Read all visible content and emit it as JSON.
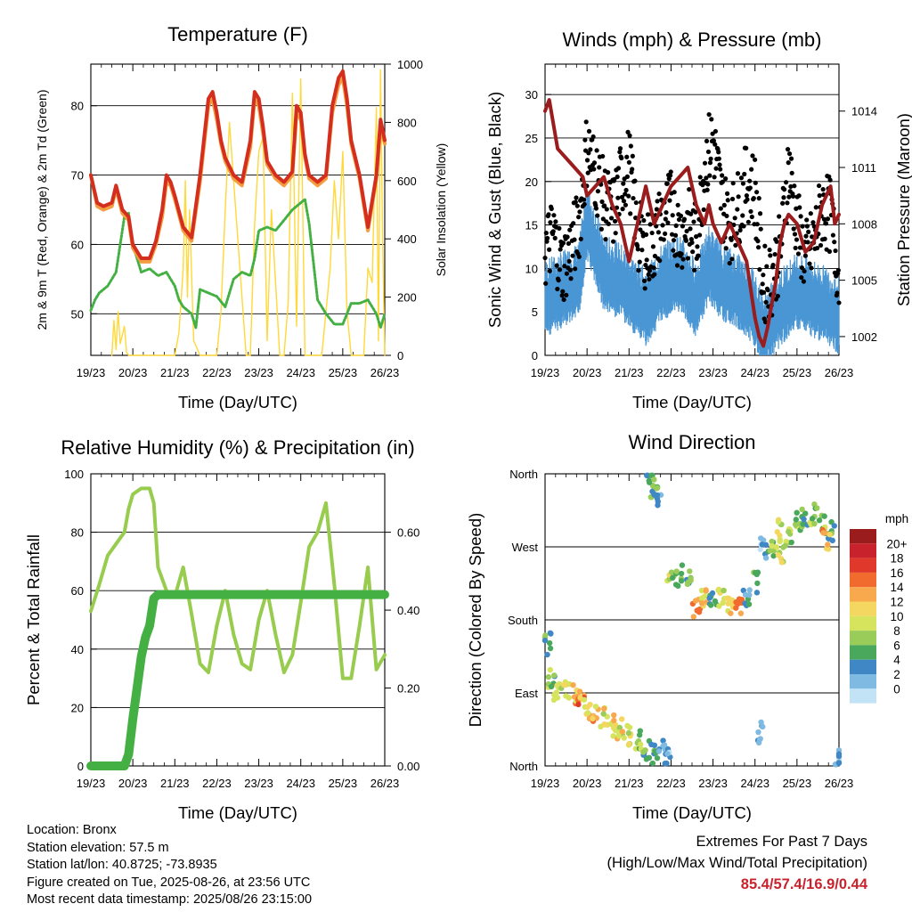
{
  "x_ticks": [
    "19/23",
    "20/23",
    "21/23",
    "22/23",
    "23/23",
    "24/23",
    "25/23",
    "26/23"
  ],
  "colors": {
    "temp_2m": "#d42e1e",
    "temp_9m": "#f39c40",
    "dewpoint": "#44b043",
    "solar": "#ffd83a",
    "wind": "#4a96d4",
    "gust": "#000000",
    "pressure": "#9b1c1c",
    "rh": "#97cc4e",
    "precip": "#44b043"
  },
  "chart_data": [
    {
      "id": "temperature",
      "type": "line",
      "title": "Temperature (F)",
      "xlabel": "Time (Day/UTC)",
      "ylabel": "2m & 9m T (Red, Orange) & 2m Td (Green)",
      "ylabel_right": "Solar Insolation (Yellow)",
      "ylim": [
        44,
        86
      ],
      "ylim_right": [
        0,
        1000
      ],
      "yticks": [
        "50",
        "60",
        "70",
        "80"
      ],
      "yticks_right": [
        "0",
        "200",
        "400",
        "600",
        "800",
        "1000"
      ],
      "series": [
        {
          "x": [
            0,
            0.15,
            0.3,
            0.5,
            0.6,
            0.75,
            0.9,
            1.0,
            1.2,
            1.4,
            1.55,
            1.7,
            1.8,
            1.9,
            2.0,
            2.2,
            2.4,
            2.6,
            2.8,
            2.9,
            3.0,
            3.1,
            3.2,
            3.4,
            3.6,
            3.8,
            3.9,
            4.0,
            4.1,
            4.2,
            4.4,
            4.6,
            4.8,
            4.9,
            5.0,
            5.1,
            5.2,
            5.4,
            5.6,
            5.75,
            5.9,
            6.0,
            6.1,
            6.2,
            6.4,
            6.6,
            6.8,
            6.9,
            7.0
          ],
          "y": [
            70,
            66,
            65.5,
            66,
            68.5,
            65,
            64,
            60,
            58,
            58,
            60.5,
            65,
            70,
            69,
            67,
            62.5,
            61,
            70,
            81,
            82,
            79,
            75,
            72.5,
            70,
            69,
            75,
            82,
            81,
            77,
            72,
            70,
            69,
            70.5,
            80,
            79,
            73,
            70,
            69,
            70,
            80,
            84,
            85,
            81,
            75,
            70,
            62.5,
            70,
            78,
            75
          ]
        },
        {
          "x": [
            0,
            0.15,
            0.3,
            0.5,
            0.6,
            0.75,
            0.9,
            1.0,
            1.2,
            1.4,
            1.55,
            1.7,
            1.8,
            1.9,
            2.0,
            2.2,
            2.4,
            2.6,
            2.8,
            2.9,
            3.0,
            3.1,
            3.2,
            3.4,
            3.6,
            3.8,
            3.9,
            4.0,
            4.1,
            4.2,
            4.4,
            4.6,
            4.8,
            4.9,
            5.0,
            5.1,
            5.2,
            5.4,
            5.6,
            5.75,
            5.9,
            6.0,
            6.1,
            6.2,
            6.4,
            6.6,
            6.8,
            6.9,
            7.0
          ],
          "y": [
            70,
            65.5,
            65,
            65.5,
            68,
            64.5,
            63.5,
            59.5,
            57.5,
            57.5,
            60,
            64,
            69,
            68.5,
            66.5,
            62,
            60.5,
            69,
            80,
            81,
            78,
            74.5,
            72,
            69.5,
            68.5,
            74,
            81,
            80,
            76,
            71.5,
            69.5,
            68.5,
            70,
            79,
            78,
            72.5,
            69.5,
            68.5,
            69.5,
            79,
            83,
            84,
            80,
            74.5,
            69.5,
            62,
            69.5,
            77,
            74.5
          ]
        },
        {
          "x": [
            0,
            0.1,
            0.2,
            0.4,
            0.6,
            0.7,
            0.8,
            0.9,
            1.0,
            1.2,
            1.4,
            1.6,
            1.8,
            1.9,
            2.0,
            2.1,
            2.2,
            2.4,
            2.5,
            2.6,
            2.8,
            3.0,
            3.2,
            3.4,
            3.6,
            3.8,
            3.9,
            4.0,
            4.2,
            4.4,
            4.6,
            4.8,
            5.0,
            5.1,
            5.2,
            5.4,
            5.6,
            5.8,
            6.0,
            6.2,
            6.4,
            6.6,
            6.8,
            6.9,
            7.0
          ],
          "y": [
            50.5,
            52,
            53,
            54,
            56,
            60,
            64,
            64.5,
            60,
            56,
            56.5,
            55.5,
            56,
            55,
            54,
            52,
            51,
            50,
            48,
            53.5,
            53,
            52.5,
            51,
            55,
            56,
            55.5,
            58,
            62,
            62.5,
            62,
            63.5,
            65,
            66,
            66.5,
            63,
            52,
            50,
            48.5,
            48.5,
            51.5,
            51.5,
            52,
            50,
            48,
            50
          ]
        },
        {
          "x": [
            0.5,
            0.55,
            0.6,
            0.65,
            0.7,
            0.8,
            0.85,
            0.9,
            2.0,
            2.1,
            2.2,
            2.25,
            2.3,
            2.35,
            2.45,
            2.6,
            2.8,
            3.0,
            3.1,
            3.2,
            3.3,
            3.5,
            3.7,
            3.8,
            3.9,
            4.0,
            4.1,
            4.2,
            4.3,
            4.5,
            4.6,
            4.7,
            4.8,
            4.9,
            5.0,
            5.1,
            5.2,
            5.3,
            5.5,
            5.7,
            5.8,
            5.9,
            6.0,
            6.1,
            6.2,
            6.3,
            6.5,
            6.6,
            6.7,
            6.8,
            6.85,
            6.9,
            6.95,
            7.0
          ],
          "y": [
            0,
            120,
            20,
            150,
            40,
            100,
            10,
            0,
            0,
            80,
            300,
            600,
            200,
            500,
            50,
            0,
            0,
            0,
            150,
            500,
            800,
            400,
            0,
            0,
            450,
            700,
            750,
            50,
            500,
            0,
            0,
            180,
            900,
            100,
            950,
            0,
            0,
            0,
            0,
            300,
            600,
            400,
            700,
            150,
            0,
            0,
            0,
            300,
            250,
            850,
            50,
            980,
            400,
            0
          ]
        }
      ],
      "series_colors": [
        "temp_2m",
        "temp_9m",
        "dewpoint",
        "solar"
      ]
    },
    {
      "id": "winds",
      "type": "scatter",
      "title": "Winds (mph) & Pressure (mb)",
      "xlabel": "Time (Day/UTC)",
      "ylabel": "Sonic Wind & Gust (Blue, Black)",
      "ylabel_right": "Station Pressure (Maroon)",
      "ylim": [
        0,
        33.5
      ],
      "ylim_right": [
        1001,
        1016.5
      ],
      "yticks": [
        "0",
        "5",
        "10",
        "15",
        "20",
        "25",
        "30"
      ],
      "yticks_right": [
        "1002",
        "1005",
        "1008",
        "1011",
        "1014"
      ],
      "series": [
        {
          "x": [
            0,
            0.4,
            0.8,
            1.0,
            1.4,
            1.8,
            2.0,
            2.4,
            2.8,
            3.2,
            3.6,
            3.9,
            4.2,
            4.6,
            5.0,
            5.2,
            5.6,
            6.0,
            6.4,
            6.8,
            7.0
          ],
          "y": [
            6,
            7,
            8,
            15,
            9,
            8,
            7,
            5,
            8,
            9,
            6,
            10,
            8,
            7,
            5,
            2,
            5,
            7,
            6,
            5,
            4
          ]
        },
        {
          "x": [
            0,
            0.2,
            0.4,
            0.6,
            0.8,
            1.0,
            1.2,
            1.4,
            1.6,
            1.8,
            2.0,
            2.2,
            2.4,
            2.6,
            2.8,
            3.0,
            3.2,
            3.4,
            3.6,
            3.8,
            4.0,
            4.2,
            4.4,
            4.6,
            4.8,
            5.0,
            5.2,
            5.4,
            5.6,
            5.8,
            6.0,
            6.2,
            6.4,
            6.6,
            6.8,
            7.0
          ],
          "y": [
            12,
            14,
            10,
            12,
            15,
            24,
            21,
            18,
            16,
            20,
            22,
            14,
            12,
            13,
            16,
            17,
            14,
            15,
            13,
            22,
            25,
            18,
            15,
            17,
            20,
            19,
            8,
            9,
            12,
            22,
            15,
            11,
            13,
            17,
            16,
            9
          ]
        },
        {
          "x": [
            0,
            0.1,
            0.3,
            0.5,
            0.7,
            0.9,
            1.0,
            1.2,
            1.4,
            1.6,
            1.8,
            2.0,
            2.2,
            2.4,
            2.6,
            2.8,
            3.0,
            3.2,
            3.4,
            3.6,
            3.8,
            3.9,
            4.0,
            4.2,
            4.4,
            4.6,
            4.8,
            5.0,
            5.1,
            5.2,
            5.3,
            5.5,
            5.6,
            5.7,
            5.8,
            6.0,
            6.2,
            6.4,
            6.6,
            6.8,
            6.9,
            7.0
          ],
          "y": [
            1014,
            1014.6,
            1012,
            1011.5,
            1011,
            1010.5,
            1009.5,
            1010,
            1010.5,
            1009,
            1008,
            1006,
            1008,
            1010,
            1008,
            1009,
            1010,
            1010.5,
            1011,
            1009,
            1008,
            1009,
            1008,
            1007,
            1008,
            1007,
            1006,
            1003,
            1002,
            1001.5,
            1002.5,
            1005,
            1007,
            1008,
            1008.5,
            1008,
            1006.5,
            1007,
            1009,
            1010,
            1008,
            1008.5
          ]
        }
      ],
      "series_colors": [
        "wind",
        "gust",
        "pressure"
      ]
    },
    {
      "id": "humidity",
      "type": "line",
      "title": "Relative Humidity (%) & Precipitation (in)",
      "xlabel": "Time (Day/UTC)",
      "ylabel": "Percent & Total Rainfall",
      "ylim": [
        0,
        100
      ],
      "ylim_right": [
        0,
        0.75
      ],
      "yticks": [
        "0",
        "20",
        "40",
        "60",
        "80",
        "100"
      ],
      "yticks_right": [
        "0.00",
        "0.20",
        "0.40",
        "0.60"
      ],
      "series": [
        {
          "x": [
            0,
            0.2,
            0.4,
            0.6,
            0.8,
            0.9,
            1.0,
            1.2,
            1.4,
            1.5,
            1.6,
            1.8,
            2.0,
            2.2,
            2.4,
            2.6,
            2.8,
            3.0,
            3.2,
            3.4,
            3.6,
            3.8,
            4.0,
            4.2,
            4.4,
            4.6,
            4.8,
            5.0,
            5.2,
            5.4,
            5.6,
            5.8,
            6.0,
            6.2,
            6.4,
            6.6,
            6.8,
            7.0
          ],
          "y": [
            53,
            62,
            72,
            76,
            80,
            88,
            93,
            95,
            95,
            90,
            68,
            60,
            58,
            68,
            52,
            35,
            32,
            48,
            60,
            45,
            35,
            33,
            50,
            60,
            45,
            32,
            38,
            56,
            75,
            80,
            90,
            62,
            30,
            30,
            48,
            68,
            33,
            38
          ]
        },
        {
          "x": [
            0,
            0.4,
            0.6,
            0.8,
            0.9,
            1.0,
            1.1,
            1.2,
            1.3,
            1.4,
            1.5,
            1.6,
            2,
            3,
            4,
            5,
            6,
            7
          ],
          "y": [
            0,
            0,
            0,
            0,
            0.03,
            0.12,
            0.2,
            0.28,
            0.33,
            0.36,
            0.43,
            0.44,
            0.44,
            0.44,
            0.44,
            0.44,
            0.44,
            0.44
          ]
        }
      ],
      "series_colors": [
        "rh",
        "precip"
      ]
    },
    {
      "id": "wind_direction",
      "type": "scatter",
      "title": "Wind Direction",
      "xlabel": "Time (Day/UTC)",
      "ylabel": "Direction (Colored By Speed)",
      "ylim": [
        0,
        360
      ],
      "yticks": [
        "North",
        "East",
        "South",
        "West",
        "North"
      ],
      "legend_title": "mph",
      "legend_labels": [
        "20+",
        "18",
        "16",
        "14",
        "12",
        "10",
        "8",
        "6",
        "4",
        "2",
        "0"
      ],
      "legend_colors": [
        "#9b1c1c",
        "#c8232c",
        "#e0382a",
        "#f26b2e",
        "#f8a94e",
        "#f4d760",
        "#d6e35d",
        "#9acc59",
        "#4aa85d",
        "#3f88c5",
        "#7ebae2",
        "#c2e3f5"
      ],
      "points": [
        {
          "x": 0.05,
          "y": 150,
          "v": 6
        },
        {
          "x": 0.15,
          "y": 110,
          "v": 7
        },
        {
          "x": 0.3,
          "y": 95,
          "v": 9
        },
        {
          "x": 0.5,
          "y": 92,
          "v": 11
        },
        {
          "x": 0.7,
          "y": 88,
          "v": 13
        },
        {
          "x": 0.85,
          "y": 80,
          "v": 15
        },
        {
          "x": 1.0,
          "y": 70,
          "v": 12
        },
        {
          "x": 1.2,
          "y": 60,
          "v": 13
        },
        {
          "x": 1.4,
          "y": 58,
          "v": 11
        },
        {
          "x": 1.6,
          "y": 50,
          "v": 12
        },
        {
          "x": 1.8,
          "y": 45,
          "v": 11
        },
        {
          "x": 2.0,
          "y": 38,
          "v": 10
        },
        {
          "x": 2.2,
          "y": 30,
          "v": 8
        },
        {
          "x": 2.4,
          "y": 20,
          "v": 6
        },
        {
          "x": 2.6,
          "y": 15,
          "v": 5
        },
        {
          "x": 2.8,
          "y": 20,
          "v": 4
        },
        {
          "x": 2.9,
          "y": 15,
          "v": 3
        },
        {
          "x": 2.5,
          "y": 355,
          "v": 5
        },
        {
          "x": 2.6,
          "y": 345,
          "v": 6
        },
        {
          "x": 2.7,
          "y": 330,
          "v": 5
        },
        {
          "x": 3.0,
          "y": 230,
          "v": 9
        },
        {
          "x": 3.2,
          "y": 235,
          "v": 8
        },
        {
          "x": 3.4,
          "y": 230,
          "v": 7
        },
        {
          "x": 3.6,
          "y": 195,
          "v": 15
        },
        {
          "x": 3.8,
          "y": 210,
          "v": 12
        },
        {
          "x": 4.0,
          "y": 205,
          "v": 6
        },
        {
          "x": 4.2,
          "y": 210,
          "v": 10
        },
        {
          "x": 4.4,
          "y": 200,
          "v": 12
        },
        {
          "x": 4.6,
          "y": 195,
          "v": 16
        },
        {
          "x": 4.8,
          "y": 205,
          "v": 4
        },
        {
          "x": 5.0,
          "y": 225,
          "v": 5
        },
        {
          "x": 5.2,
          "y": 270,
          "v": 3
        },
        {
          "x": 5.4,
          "y": 270,
          "v": 8
        },
        {
          "x": 5.6,
          "y": 290,
          "v": 10
        },
        {
          "x": 5.8,
          "y": 285,
          "v": 9
        },
        {
          "x": 6.0,
          "y": 300,
          "v": 7
        },
        {
          "x": 6.2,
          "y": 305,
          "v": 6
        },
        {
          "x": 6.4,
          "y": 310,
          "v": 8
        },
        {
          "x": 6.6,
          "y": 300,
          "v": 7
        },
        {
          "x": 6.8,
          "y": 290,
          "v": 5
        },
        {
          "x": 7.0,
          "y": 10,
          "v": 3
        },
        {
          "x": 5.1,
          "y": 40,
          "v": 2
        },
        {
          "x": 5.6,
          "y": 260,
          "v": 11
        },
        {
          "x": 6.7,
          "y": 280,
          "v": 14
        }
      ]
    }
  ],
  "info": {
    "location": "Location: Bronx",
    "elevation": "Station elevation: 57.5 m",
    "latlon": "Station lat/lon: 40.8725; -73.8935",
    "created": "Figure created on Tue, 2025-08-26, at 23:56 UTC",
    "latest": "Most recent data timestamp: 2025/08/26 23:15:00"
  },
  "extremes": {
    "line1": "Extremes For Past 7 Days",
    "line2": "(High/Low/Max Wind/Total Precipitation)",
    "values": "85.4/57.4/16.9/0.44"
  }
}
